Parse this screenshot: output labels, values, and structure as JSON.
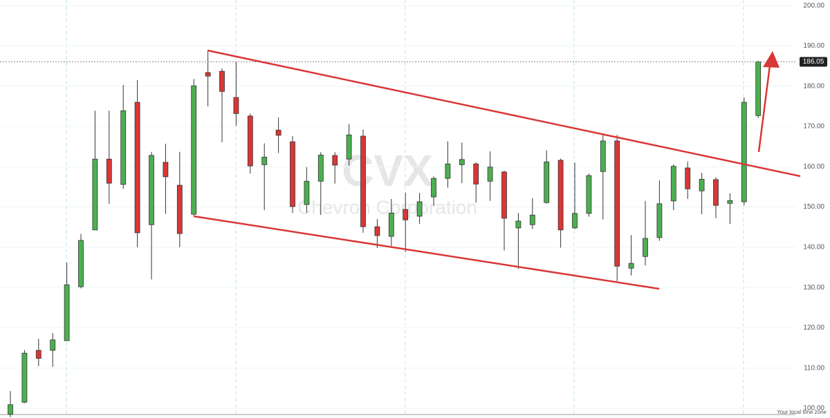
{
  "chart_data": {
    "type": "candlestick",
    "watermark": {
      "symbol": "CVX",
      "name": "Chevron Corporation"
    },
    "footer_note": "Your local time zone",
    "last_price": 186.05,
    "up_color": "#4caf50",
    "down_color": "#d93636",
    "grid": true,
    "ylim": [
      97.6,
      201.4
    ],
    "yticks": [
      {
        "value": 100,
        "label": "100.00"
      },
      {
        "value": 110,
        "label": "110.00"
      },
      {
        "value": 120,
        "label": "120.00"
      },
      {
        "value": 130,
        "label": "130.00"
      },
      {
        "value": 140,
        "label": "140.00"
      },
      {
        "value": 150,
        "label": "150.00"
      },
      {
        "value": 160,
        "label": "160.00"
      },
      {
        "value": 170,
        "label": "170.00"
      },
      {
        "value": 180,
        "label": "180.00"
      },
      {
        "value": 190,
        "label": "190.00"
      },
      {
        "value": 200,
        "label": "200.00"
      }
    ],
    "open": [
      98.5,
      101.5,
      114.4,
      114.4,
      116.8,
      130.2,
      144.3,
      161.9,
      155.6,
      176,
      145.6,
      161.1,
      155.4,
      148.2,
      183.4,
      183.7,
      177.2,
      172.6,
      160.5,
      169.1,
      166.2,
      150.6,
      156.4,
      162.8,
      161.9,
      167.6,
      145.1,
      142.7,
      149.4,
      147.7,
      152.5,
      157.1,
      160.5,
      160.7,
      156.4,
      158.7,
      144.8,
      145.6,
      151.1,
      161.6,
      144.8,
      148.4,
      158.8,
      166.4,
      134.8,
      137.7,
      142.4,
      151.5,
      159.7,
      154,
      156.8,
      150.9,
      151.3,
      172.7
    ],
    "high": [
      104.3,
      114.5,
      117.3,
      118.7,
      136.2,
      143.3,
      173.9,
      173.9,
      180.3,
      181.5,
      163.7,
      165.7,
      163.7,
      181.8,
      188.6,
      184.4,
      186.2,
      173.2,
      165.8,
      172.2,
      167.6,
      159.9,
      163.6,
      163.6,
      170.6,
      169.2,
      147,
      152,
      153.6,
      153.5,
      157.6,
      166.3,
      166,
      161.1,
      163.8,
      159,
      148.5,
      152.2,
      164.1,
      162,
      161,
      158.3,
      168.3,
      167.9,
      143,
      151.5,
      156.6,
      160.6,
      161.3,
      158.5,
      157.4,
      153.4,
      177.2,
      186.3
    ],
    "low": [
      97.8,
      101.3,
      110.5,
      110.3,
      116.8,
      129.8,
      144.3,
      150.8,
      154.5,
      140,
      132,
      148.3,
      140,
      147.8,
      175,
      166.1,
      170.2,
      158.3,
      149.2,
      163.4,
      148.5,
      148.6,
      148,
      155.8,
      160.3,
      143.6,
      139.8,
      140.3,
      138.8,
      145.8,
      150.3,
      154.8,
      155.9,
      151.1,
      151.5,
      139.2,
      134.6,
      144.5,
      150.8,
      139.9,
      144.5,
      147.6,
      146.9,
      131.6,
      133,
      135.5,
      141.6,
      149.2,
      152,
      148.2,
      147.2,
      145.8,
      150.4,
      172.1
    ],
    "close": [
      100.9,
      113.7,
      112.4,
      117,
      130.7,
      141.7,
      161.9,
      155.9,
      173.9,
      143.6,
      162.8,
      157.5,
      143.4,
      180.1,
      182.5,
      178.7,
      173.2,
      160.2,
      162.4,
      167.8,
      150.1,
      156.4,
      162.9,
      160.4,
      167.9,
      145.1,
      142.9,
      148.5,
      146.8,
      151.3,
      157.1,
      160.7,
      161.8,
      155.7,
      159.9,
      147.2,
      146.5,
      148,
      161.2,
      144.3,
      148.4,
      157.8,
      166.4,
      135.3,
      136,
      142.2,
      150.8,
      160.1,
      154.5,
      156.9,
      150.4,
      151.6,
      176,
      186.05
    ]
  }
}
